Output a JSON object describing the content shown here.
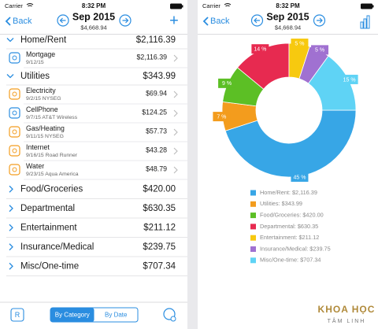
{
  "screens": [
    {
      "status": {
        "carrier": "Carrier",
        "time": "8:32 PM"
      },
      "nav": {
        "back": "Back",
        "title": "Sep 2015",
        "total": "$4,668.94",
        "action": "+"
      },
      "groups": [
        {
          "name": "Home/Rent",
          "amount": "$2,116.39",
          "items": [
            {
              "name": "Mortgage",
              "detail": "9/12/15",
              "amount": "$2,116.39"
            }
          ]
        },
        {
          "name": "Utilities",
          "amount": "$343.99",
          "items": [
            {
              "name": "Electricity",
              "detail": "9/2/15 NYSEG",
              "amount": "$69.94"
            },
            {
              "name": "CellPhone",
              "detail": "9/7/15 AT&T Wireless",
              "amount": "$124.25"
            },
            {
              "name": "Gas/Heating",
              "detail": "9/11/15 NYSEG",
              "amount": "$57.73"
            },
            {
              "name": "Internet",
              "detail": "9/16/15 Road Runner",
              "amount": "$43.28"
            },
            {
              "name": "Water",
              "detail": "9/23/15 Aqua America",
              "amount": "$48.79"
            }
          ]
        },
        {
          "name": "Food/Groceries",
          "amount": "$420.00",
          "items": []
        },
        {
          "name": "Departmental",
          "amount": "$630.35",
          "items": []
        },
        {
          "name": "Entertainment",
          "amount": "$211.12",
          "items": []
        },
        {
          "name": "Insurance/Medical",
          "amount": "$239.75",
          "items": []
        },
        {
          "name": "Misc/One-time",
          "amount": "$707.34",
          "items": []
        }
      ],
      "toolbar": {
        "button": "R",
        "tabs": [
          "By Category",
          "By Date"
        ]
      }
    },
    {
      "status": {
        "carrier": "Carrier",
        "time": "8:32 PM"
      },
      "nav": {
        "back": "Back",
        "title": "Sep 2015",
        "total": "$4,668.94"
      },
      "chart": {
        "type": "donut",
        "segments": [
          {
            "legend": "Home/Rent: $2,116.39",
            "value": 45,
            "value_label": "45 %",
            "color": "#37a6e6"
          },
          {
            "legend": "Utilities: $343.99",
            "value": 7,
            "value_label": "7 %",
            "color": "#f39c1d"
          },
          {
            "legend": "Food/Groceries: $420.00",
            "value": 9,
            "value_label": "9 %",
            "color": "#5cbf25"
          },
          {
            "legend": "Departmental: $630.35",
            "value": 14,
            "value_label": "14 %",
            "color": "#e72a50"
          },
          {
            "legend": "Entertainment: $211.12",
            "value": 5,
            "value_label": "5 %",
            "color": "#f7c90f"
          },
          {
            "legend": "Insurance/Medical: $239.75",
            "value": 5,
            "value_label": "5 %",
            "color": "#a071d1"
          },
          {
            "legend": "Misc/One-time: $707.34",
            "value": 15,
            "value_label": "15 %",
            "color": "#5fd3f5"
          }
        ]
      }
    }
  ],
  "watermark": {
    "line1": "KHOA HỌC",
    "line2": "TÂM LINH"
  }
}
